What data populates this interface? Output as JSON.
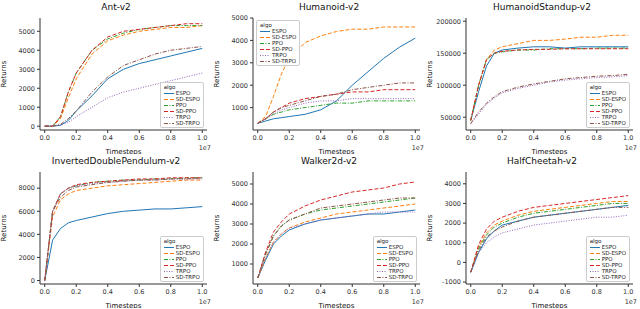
{
  "chart_data": [
    {
      "type": "line",
      "title": "Ant-v2",
      "x_label": "Timesteps",
      "y_label": "Returns",
      "x_offset_label": "1e7",
      "legend": "lower right",
      "legend_title": "algo",
      "grid": false,
      "x": [
        0,
        0.05,
        0.1,
        0.15,
        0.2,
        0.3,
        0.4,
        0.5,
        0.6,
        0.7,
        0.8,
        0.9,
        1.0
      ],
      "xlim": [
        -0.03,
        1.03
      ],
      "xticks": [
        {
          "value": 0,
          "label": "0.0"
        },
        0.2,
        0.4,
        0.6,
        0.8,
        {
          "value": 1,
          "label": "1.0"
        }
      ],
      "ylim": [
        -200,
        5700
      ],
      "yticks": [
        0,
        1000,
        2000,
        3000,
        4000,
        5000
      ],
      "series": [
        {
          "name": "ESPO",
          "color": "#1f77b4",
          "line_style": "solid",
          "values": [
            0,
            0,
            50,
            300,
            800,
            1600,
            2500,
            3000,
            3300,
            3500,
            3700,
            3900,
            4100
          ]
        },
        {
          "name": "SD-ESPO",
          "color": "#ff7f0e",
          "line_style": "dashed",
          "values": [
            0,
            0,
            400,
            1500,
            2500,
            3800,
            4500,
            4800,
            5000,
            5100,
            5200,
            5200,
            5300
          ]
        },
        {
          "name": "PPO",
          "color": "#2ca02c",
          "line_style": "dashdot",
          "values": [
            0,
            0,
            500,
            1800,
            2800,
            4000,
            4600,
            4900,
            5100,
            5200,
            5300,
            5300,
            5300
          ]
        },
        {
          "name": "SD-PPO",
          "color": "#d62728",
          "line_style": "dashed",
          "values": [
            0,
            0,
            500,
            1800,
            2800,
            4000,
            4700,
            5000,
            5100,
            5200,
            5300,
            5400,
            5400
          ]
        },
        {
          "name": "TRPO",
          "color": "#9467bd",
          "line_style": "dotted",
          "values": [
            0,
            0,
            50,
            200,
            500,
            1000,
            1500,
            1800,
            2000,
            2200,
            2400,
            2600,
            2800
          ]
        },
        {
          "name": "SD-TRPO",
          "color": "#8c564b",
          "line_style": "dashdot",
          "values": [
            0,
            0,
            100,
            400,
            800,
            1800,
            2600,
            3200,
            3500,
            3800,
            4000,
            4100,
            4200
          ]
        }
      ]
    },
    {
      "type": "line",
      "title": "Humanoid-v2",
      "x_label": "Timesteps",
      "y_label": "Returns",
      "x_offset_label": "1e7",
      "legend": "upper left",
      "legend_title": "algo",
      "grid": false,
      "x": [
        0,
        0.05,
        0.1,
        0.15,
        0.2,
        0.3,
        0.4,
        0.5,
        0.6,
        0.7,
        0.8,
        0.9,
        1.0
      ],
      "xlim": [
        -0.03,
        1.03
      ],
      "xticks": [
        {
          "value": 0,
          "label": "0.0"
        },
        0.2,
        0.4,
        0.6,
        0.8,
        {
          "value": 1,
          "label": "1.0"
        }
      ],
      "ylim": [
        0,
        5000
      ],
      "yticks": [
        1000,
        2000,
        3000,
        4000,
        5000
      ],
      "series": [
        {
          "name": "ESPO",
          "color": "#1f77b4",
          "line_style": "solid",
          "values": [
            300,
            400,
            500,
            550,
            600,
            700,
            900,
            1300,
            2000,
            2600,
            3200,
            3700,
            4100
          ]
        },
        {
          "name": "SD-ESPO",
          "color": "#ff7f0e",
          "line_style": "dashed",
          "values": [
            300,
            600,
            1500,
            2500,
            3200,
            3900,
            4200,
            4400,
            4500,
            4500,
            4600,
            4600,
            4600
          ]
        },
        {
          "name": "PPO",
          "color": "#2ca02c",
          "line_style": "dashdot",
          "values": [
            300,
            500,
            700,
            800,
            900,
            1000,
            1100,
            1200,
            1200,
            1300,
            1300,
            1300,
            1300
          ]
        },
        {
          "name": "SD-PPO",
          "color": "#d62728",
          "line_style": "dashed",
          "values": [
            300,
            500,
            800,
            1000,
            1200,
            1400,
            1500,
            1600,
            1700,
            1700,
            1800,
            1800,
            1800
          ]
        },
        {
          "name": "TRPO",
          "color": "#9467bd",
          "line_style": "dotted",
          "values": [
            300,
            500,
            700,
            900,
            1000,
            1200,
            1300,
            1300,
            1400,
            1400,
            1400,
            1400,
            1400
          ]
        },
        {
          "name": "SD-TRPO",
          "color": "#8c564b",
          "line_style": "dashdot",
          "values": [
            300,
            500,
            800,
            1000,
            1100,
            1300,
            1500,
            1600,
            1800,
            1900,
            2000,
            2100,
            2100
          ]
        }
      ]
    },
    {
      "type": "line",
      "title": "HumanoidStandup-v2",
      "x_label": "Timesteps",
      "y_label": "Returns",
      "x_offset_label": "1e7",
      "legend": "lower right",
      "legend_title": "algo",
      "grid": false,
      "x": [
        0,
        0.05,
        0.1,
        0.15,
        0.2,
        0.3,
        0.4,
        0.5,
        0.6,
        0.7,
        0.8,
        0.9,
        1.0
      ],
      "xlim": [
        -0.03,
        1.03
      ],
      "xticks": [
        {
          "value": 0,
          "label": "0.0"
        },
        0.2,
        0.4,
        0.6,
        0.8,
        {
          "value": 1,
          "label": "1.0"
        }
      ],
      "ylim": [
        30000,
        205000
      ],
      "yticks": [
        50000,
        100000,
        150000,
        200000
      ],
      "series": [
        {
          "name": "ESPO",
          "color": "#1f77b4",
          "line_style": "solid",
          "values": [
            45000,
            90000,
            130000,
            150000,
            155000,
            158000,
            160000,
            160000,
            158000,
            160000,
            160000,
            160000,
            160000
          ]
        },
        {
          "name": "SD-ESPO",
          "color": "#ff7f0e",
          "line_style": "dashed",
          "values": [
            45000,
            100000,
            140000,
            155000,
            160000,
            165000,
            170000,
            170000,
            172000,
            175000,
            175000,
            178000,
            178000
          ]
        },
        {
          "name": "PPO",
          "color": "#2ca02c",
          "line_style": "dashdot",
          "values": [
            45000,
            100000,
            140000,
            150000,
            152000,
            155000,
            155000,
            157000,
            157000,
            157000,
            158000,
            158000,
            158000
          ]
        },
        {
          "name": "SD-PPO",
          "color": "#d62728",
          "line_style": "dashed",
          "values": [
            45000,
            100000,
            140000,
            150000,
            153000,
            155000,
            156000,
            156000,
            157000,
            157000,
            157000,
            157000,
            157000
          ]
        },
        {
          "name": "TRPO",
          "color": "#9467bd",
          "line_style": "dotted",
          "values": [
            40000,
            55000,
            70000,
            80000,
            88000,
            95000,
            100000,
            105000,
            108000,
            110000,
            112000,
            113000,
            115000
          ]
        },
        {
          "name": "SD-TRPO",
          "color": "#8c564b",
          "line_style": "dashdot",
          "values": [
            40000,
            58000,
            72000,
            82000,
            90000,
            97000,
            102000,
            106000,
            110000,
            112000,
            114000,
            115000,
            117000
          ]
        }
      ]
    },
    {
      "type": "line",
      "title": "InvertedDoublePendulum-v2",
      "x_label": "Timesteps",
      "y_label": "Returns",
      "x_offset_label": "1e7",
      "legend": "lower right",
      "legend_title": "algo",
      "grid": false,
      "x": [
        0,
        0.05,
        0.1,
        0.15,
        0.2,
        0.3,
        0.4,
        0.5,
        0.6,
        0.7,
        0.8,
        0.9,
        1.0
      ],
      "xlim": [
        -0.03,
        1.03
      ],
      "xticks": [
        {
          "value": 0,
          "label": "0.0"
        },
        0.2,
        0.4,
        0.6,
        0.8,
        {
          "value": 1,
          "label": "1.0"
        }
      ],
      "ylim": [
        -300,
        9400
      ],
      "yticks": [
        0,
        2000,
        4000,
        6000,
        8000
      ],
      "series": [
        {
          "name": "ESPO",
          "color": "#1f77b4",
          "line_style": "solid",
          "values": [
            0,
            3500,
            4500,
            5000,
            5200,
            5500,
            5800,
            6000,
            6100,
            6200,
            6200,
            6300,
            6400
          ]
        },
        {
          "name": "SD-ESPO",
          "color": "#ff7f0e",
          "line_style": "dashed",
          "values": [
            0,
            5500,
            7000,
            7500,
            7800,
            8000,
            8200,
            8300,
            8400,
            8500,
            8600,
            8700,
            8700
          ]
        },
        {
          "name": "PPO",
          "color": "#2ca02c",
          "line_style": "dashdot",
          "values": [
            0,
            6000,
            7500,
            8000,
            8200,
            8500,
            8600,
            8700,
            8700,
            8800,
            8800,
            8900,
            8900
          ]
        },
        {
          "name": "SD-PPO",
          "color": "#d62728",
          "line_style": "dashed",
          "values": [
            0,
            6000,
            7500,
            8000,
            8300,
            8500,
            8600,
            8700,
            8800,
            8800,
            8900,
            8900,
            8900
          ]
        },
        {
          "name": "TRPO",
          "color": "#9467bd",
          "line_style": "dotted",
          "values": [
            0,
            6000,
            7500,
            8000,
            8200,
            8400,
            8500,
            8600,
            8700,
            8700,
            8800,
            8800,
            8800
          ]
        },
        {
          "name": "SD-TRPO",
          "color": "#8c564b",
          "line_style": "dashdot",
          "values": [
            0,
            6000,
            7200,
            7800,
            8100,
            8300,
            8500,
            8600,
            8700,
            8700,
            8800,
            8800,
            8900
          ]
        }
      ]
    },
    {
      "type": "line",
      "title": "Walker2d-v2",
      "x_label": "Timesteps",
      "y_label": "Returns",
      "x_offset_label": "1e7",
      "legend": "lower right",
      "legend_title": "algo",
      "grid": false,
      "x": [
        0,
        0.05,
        0.1,
        0.15,
        0.2,
        0.3,
        0.4,
        0.5,
        0.6,
        0.7,
        0.8,
        0.9,
        1.0
      ],
      "xlim": [
        -0.03,
        1.03
      ],
      "xticks": [
        {
          "value": 0,
          "label": "0.0"
        },
        0.2,
        0.4,
        0.6,
        0.8,
        {
          "value": 1,
          "label": "1.0"
        }
      ],
      "ylim": [
        0,
        5600
      ],
      "yticks": [
        1000,
        2000,
        3000,
        4000,
        5000
      ],
      "series": [
        {
          "name": "ESPO",
          "color": "#1f77b4",
          "line_style": "solid",
          "values": [
            300,
            1200,
            2000,
            2400,
            2700,
            3000,
            3200,
            3300,
            3400,
            3500,
            3500,
            3600,
            3700
          ]
        },
        {
          "name": "SD-ESPO",
          "color": "#ff7f0e",
          "line_style": "dashed",
          "values": [
            300,
            1300,
            2100,
            2500,
            2800,
            3100,
            3300,
            3500,
            3600,
            3700,
            3800,
            3900,
            4000
          ]
        },
        {
          "name": "PPO",
          "color": "#2ca02c",
          "line_style": "dashdot",
          "values": [
            300,
            1500,
            2400,
            2900,
            3200,
            3500,
            3700,
            3800,
            3900,
            4000,
            4100,
            4200,
            4300
          ]
        },
        {
          "name": "SD-PPO",
          "color": "#d62728",
          "line_style": "dashed",
          "values": [
            300,
            1600,
            2600,
            3100,
            3500,
            3900,
            4200,
            4400,
            4600,
            4700,
            4800,
            5000,
            5100
          ]
        },
        {
          "name": "TRPO",
          "color": "#9467bd",
          "line_style": "dotted",
          "values": [
            300,
            1300,
            2100,
            2500,
            2800,
            3000,
            3200,
            3300,
            3400,
            3500,
            3600,
            3600,
            3600
          ]
        },
        {
          "name": "SD-TRPO",
          "color": "#8c564b",
          "line_style": "dashdot",
          "values": [
            300,
            1500,
            2400,
            2900,
            3200,
            3500,
            3800,
            3900,
            4000,
            4100,
            4200,
            4300,
            4300
          ]
        }
      ]
    },
    {
      "type": "line",
      "title": "HalfCheetah-v2",
      "x_label": "Timesteps",
      "y_label": "Returns",
      "x_offset_label": "1e7",
      "legend": "lower right",
      "legend_title": "algo",
      "grid": false,
      "x": [
        0,
        0.05,
        0.1,
        0.15,
        0.2,
        0.3,
        0.4,
        0.5,
        0.6,
        0.7,
        0.8,
        0.9,
        1.0
      ],
      "xlim": [
        -0.03,
        1.03
      ],
      "xticks": [
        {
          "value": 0,
          "label": "0.0"
        },
        0.2,
        0.4,
        0.6,
        0.8,
        {
          "value": 1,
          "label": "1.0"
        }
      ],
      "ylim": [
        -1100,
        4600
      ],
      "yticks": [
        -1000,
        0,
        1000,
        2000,
        3000,
        4000
      ],
      "series": [
        {
          "name": "ESPO",
          "color": "#1f77b4",
          "line_style": "solid",
          "values": [
            -500,
            500,
            1200,
            1600,
            1900,
            2100,
            2300,
            2400,
            2500,
            2600,
            2700,
            2800,
            2900
          ]
        },
        {
          "name": "SD-ESPO",
          "color": "#ff7f0e",
          "line_style": "dashed",
          "values": [
            -500,
            800,
            1500,
            1900,
            2100,
            2400,
            2600,
            2700,
            2800,
            2900,
            3000,
            3100,
            3100
          ]
        },
        {
          "name": "PPO",
          "color": "#2ca02c",
          "line_style": "dashdot",
          "values": [
            -500,
            700,
            1400,
            1800,
            2000,
            2300,
            2500,
            2600,
            2700,
            2800,
            2900,
            3000,
            3000
          ]
        },
        {
          "name": "SD-PPO",
          "color": "#d62728",
          "line_style": "dashed",
          "values": [
            -500,
            900,
            1700,
            2100,
            2300,
            2600,
            2800,
            2900,
            3000,
            3100,
            3200,
            3300,
            3400
          ]
        },
        {
          "name": "TRPO",
          "color": "#9467bd",
          "line_style": "dotted",
          "values": [
            -500,
            500,
            1000,
            1300,
            1500,
            1700,
            1900,
            2000,
            2100,
            2200,
            2300,
            2300,
            2400
          ]
        },
        {
          "name": "SD-TRPO",
          "color": "#8c564b",
          "line_style": "dashdot",
          "values": [
            -500,
            600,
            1300,
            1600,
            1800,
            2100,
            2300,
            2400,
            2500,
            2600,
            2700,
            2800,
            2800
          ]
        }
      ]
    }
  ]
}
